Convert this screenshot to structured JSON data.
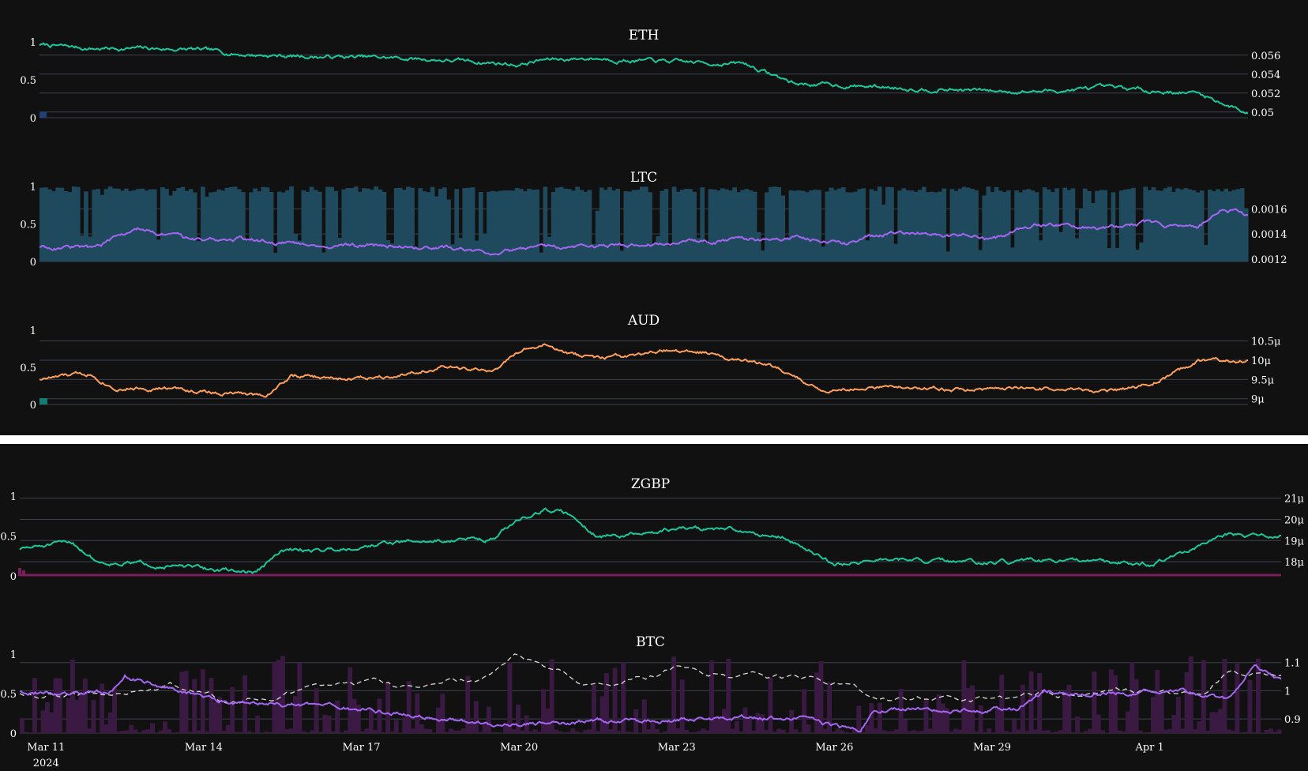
{
  "colors": {
    "background": "#111111",
    "separator": "#ffffff",
    "grid": "#3a4250",
    "text": "#ffffff",
    "green": "#1ec79a",
    "purple": "#a566f2",
    "orange": "#ff9f5c",
    "steel_bar": "#1f4a5e",
    "maroon": "#7a1f5c",
    "dark_purple_bar": "#3a1a42",
    "dashed_white": "#d9d9d9"
  },
  "x_axis": {
    "ticks": [
      "Mar 11",
      "Mar 14",
      "Mar 17",
      "Mar 20",
      "Mar 23",
      "Mar 26",
      "Mar 29",
      "Apr 1"
    ],
    "year_label": "2024",
    "range": [
      "2024-03-10T12:00",
      "2024-04-03T12:00"
    ]
  },
  "chart_data": [
    {
      "type": "line",
      "title": "ETH",
      "left_axis": {
        "range": [
          0,
          1
        ],
        "ticks": [
          "1",
          "0.5",
          "0"
        ]
      },
      "right_axis": {
        "range": [
          0.0494,
          0.0574
        ],
        "ticks": [
          "0.056",
          "0.054",
          "0.052",
          "0.05"
        ]
      },
      "series": [
        {
          "color_key": "green",
          "axis": "right",
          "style": "line",
          "x": [
            "Mar 10 12:00",
            "Mar 11 12:00",
            "Mar 12 12:00",
            "Mar 13 12:00",
            "Mar 14 12:00",
            "Mar 15 12:00",
            "Mar 16 12:00",
            "Mar 17 12:00",
            "Mar 18 12:00",
            "Mar 19 12:00",
            "Mar 20 00:00",
            "Mar 20 12:00",
            "Mar 21 12:00",
            "Mar 22 12:00",
            "Mar 23 12:00",
            "Mar 24 12:00",
            "Mar 25 12:00",
            "Mar 26 12:00",
            "Mar 27 12:00",
            "Mar 28 12:00",
            "Mar 29 12:00",
            "Mar 30 12:00",
            "Mar 31 12:00",
            "Apr 1 12:00",
            "Apr 2 12:00",
            "Apr 3 12:00"
          ],
          "values": [
            0.0571,
            0.0567,
            0.0567,
            0.0566,
            0.0561,
            0.0559,
            0.0558,
            0.0557,
            0.0555,
            0.0552,
            0.055,
            0.0555,
            0.0557,
            0.0554,
            0.0552,
            0.0551,
            0.053,
            0.0528,
            0.0526,
            0.0524,
            0.0522,
            0.0522,
            0.0525,
            0.0523,
            0.052,
            0.0499
          ]
        }
      ]
    },
    {
      "type": "line",
      "title": "LTC",
      "left_axis": {
        "range": [
          0,
          1
        ],
        "ticks": [
          "1",
          "0.5",
          "0"
        ]
      },
      "right_axis": {
        "range": [
          0.00118,
          0.00178
        ],
        "ticks": [
          "0.0016",
          "0.0014",
          "0.0012"
        ]
      },
      "series": [
        {
          "color_key": "steel_bar",
          "axis": "left",
          "style": "bars",
          "description_values": "volume 0-1, mostly near 1 with gaps"
        },
        {
          "color_key": "purple",
          "axis": "right",
          "style": "line",
          "x": [
            "Mar 10 12:00",
            "Mar 11 12:00",
            "Mar 12 06:00",
            "Mar 12 12:00",
            "Mar 13 12:00",
            "Mar 14 12:00",
            "Mar 15 12:00",
            "Mar 16 12:00",
            "Mar 17 12:00",
            "Mar 18 12:00",
            "Mar 19 12:00",
            "Mar 20 12:00",
            "Mar 21 12:00",
            "Mar 22 12:00",
            "Mar 23 12:00",
            "Mar 24 12:00",
            "Mar 25 12:00",
            "Mar 26 12:00",
            "Mar 27 12:00",
            "Mar 28 12:00",
            "Mar 29 12:00",
            "Mar 30 00:00",
            "Mar 30 12:00",
            "Mar 31 12:00",
            "Apr 1 12:00",
            "Apr 2 12:00",
            "Apr 3 00:00",
            "Apr 3 12:00"
          ],
          "values": [
            0.0013,
            0.00129,
            0.0014,
            0.00144,
            0.00135,
            0.00136,
            0.00133,
            0.00131,
            0.0013,
            0.00129,
            0.00126,
            0.00129,
            0.0013,
            0.00131,
            0.00133,
            0.00135,
            0.00137,
            0.00132,
            0.00142,
            0.00139,
            0.00137,
            0.00145,
            0.00148,
            0.00145,
            0.00149,
            0.00144,
            0.00162,
            0.00155
          ]
        }
      ]
    },
    {
      "type": "line",
      "title": "AUD",
      "left_axis": {
        "range": [
          0,
          1
        ],
        "ticks": [
          "1",
          "0.5",
          "0"
        ]
      },
      "right_axis": {
        "range": [
          8.85,
          10.78
        ],
        "ticks": [
          "10.5μ",
          "10μ",
          "9.5μ",
          "9μ"
        ]
      },
      "series": [
        {
          "color_key": "orange",
          "axis": "right",
          "style": "line",
          "x": [
            "Mar 10 12:00",
            "Mar 11 12:00",
            "Mar 12 00:00",
            "Mar 13 00:00",
            "Mar 14 00:00",
            "Mar 15 00:00",
            "Mar 15 12:00",
            "Mar 16 12:00",
            "Mar 17 12:00",
            "Mar 18 12:00",
            "Mar 19 12:00",
            "Mar 20 00:00",
            "Mar 20 12:00",
            "Mar 21 00:00",
            "Mar 21 12:00",
            "Mar 22 12:00",
            "Mar 23 00:00",
            "Mar 24 00:00",
            "Mar 25 00:00",
            "Mar 26 00:00",
            "Mar 27 00:00",
            "Mar 28 00:00",
            "Mar 29 00:00",
            "Mar 30 00:00",
            "Mar 31 00:00",
            "Apr 1 00:00",
            "Apr 1 12:00",
            "Apr 2 12:00",
            "Apr 3 12:00"
          ],
          "values": [
            9.52,
            9.65,
            9.3,
            9.27,
            9.15,
            9.1,
            9.6,
            9.5,
            9.62,
            9.82,
            9.7,
            10.2,
            10.4,
            10.15,
            10.05,
            10.1,
            10.25,
            10.15,
            9.85,
            9.25,
            9.25,
            9.3,
            9.22,
            9.28,
            9.24,
            9.2,
            9.35,
            9.95,
            10.0
          ]
        }
      ]
    },
    {
      "type": "line",
      "title": "ZGBP",
      "left_axis": {
        "range": [
          0,
          1
        ],
        "ticks": [
          "1",
          "0.5",
          "0"
        ]
      },
      "right_axis": {
        "range": [
          17.33,
          21.1
        ],
        "ticks": [
          "21μ",
          "20μ",
          "19μ",
          "18μ"
        ]
      },
      "series": [
        {
          "color_key": "maroon",
          "axis": "left",
          "style": "flat",
          "values": [
            0.01
          ]
        },
        {
          "color_key": "green",
          "axis": "right",
          "style": "line",
          "x": [
            "Mar 10 12:00",
            "Mar 11 12:00",
            "Mar 12 00:00",
            "Mar 13 00:00",
            "Mar 14 00:00",
            "Mar 15 00:00",
            "Mar 15 12:00",
            "Mar 16 12:00",
            "Mar 17 12:00",
            "Mar 18 12:00",
            "Mar 19 12:00",
            "Mar 20 00:00",
            "Mar 20 12:00",
            "Mar 21 00:00",
            "Mar 21 12:00",
            "Mar 22 12:00",
            "Mar 23 00:00",
            "Mar 24 00:00",
            "Mar 25 00:00",
            "Mar 26 00:00",
            "Mar 27 00:00",
            "Mar 28 00:00",
            "Mar 29 00:00",
            "Mar 30 00:00",
            "Mar 31 00:00",
            "Apr 1 00:00",
            "Apr 1 12:00",
            "Apr 2 12:00",
            "Apr 3 12:00"
          ],
          "values": [
            18.6,
            18.9,
            18.0,
            17.9,
            17.65,
            17.5,
            18.5,
            18.6,
            18.9,
            19.0,
            19.1,
            20.0,
            20.5,
            20.2,
            19.2,
            19.3,
            19.6,
            19.5,
            19.2,
            17.9,
            18.1,
            18.0,
            17.9,
            18.05,
            17.95,
            17.9,
            18.3,
            19.2,
            19.2
          ]
        }
      ]
    },
    {
      "type": "line",
      "title": "BTC",
      "left_axis": {
        "range": [
          0,
          1
        ],
        "ticks": [
          "1",
          "0.5",
          "0"
        ]
      },
      "right_axis": {
        "range": [
          0.85,
          1.13
        ],
        "ticks": [
          "1.1",
          "1",
          "0.9"
        ]
      },
      "series": [
        {
          "color_key": "dark_purple_bar",
          "axis": "left",
          "style": "bars",
          "description_values": "sparse volume bars 0-1"
        },
        {
          "color_key": "dashed_white",
          "axis": "left",
          "style": "dashed",
          "x": [
            "Mar 10 12:00",
            "Mar 11 12:00",
            "Mar 12 12:00",
            "Mar 13 12:00",
            "Mar 14 12:00",
            "Mar 15 12:00",
            "Mar 16 12:00",
            "Mar 17 12:00",
            "Mar 18 12:00",
            "Mar 19 12:00",
            "Mar 20 00:00",
            "Mar 20 12:00",
            "Mar 21 12:00",
            "Mar 22 12:00",
            "Mar 23 00:00",
            "Mar 24 00:00",
            "Mar 25 00:00",
            "Mar 26 00:00",
            "Mar 27 00:00",
            "Mar 28 00:00",
            "Mar 29 00:00",
            "Mar 30 00:00",
            "Mar 31 00:00",
            "Apr 1 00:00",
            "Apr 2 00:00",
            "Apr 2 12:00",
            "Apr 3 12:00"
          ],
          "values": [
            0.52,
            0.54,
            0.5,
            0.58,
            0.4,
            0.5,
            0.65,
            0.6,
            0.52,
            0.7,
            0.93,
            0.8,
            0.65,
            0.72,
            0.82,
            0.75,
            0.7,
            0.62,
            0.45,
            0.45,
            0.48,
            0.5,
            0.48,
            0.52,
            0.45,
            0.75,
            0.75
          ]
        },
        {
          "color_key": "purple",
          "axis": "right",
          "style": "line",
          "x": [
            "Mar 10 12:00",
            "Mar 11 12:00",
            "Mar 12 06:00",
            "Mar 12 12:00",
            "Mar 13 12:00",
            "Mar 14 12:00",
            "Mar 15 12:00",
            "Mar 16 12:00",
            "Mar 17 12:00",
            "Mar 18 12:00",
            "Mar 19 12:00",
            "Mar 20 12:00",
            "Mar 21 12:00",
            "Mar 22 12:00",
            "Mar 23 12:00",
            "Mar 24 12:00",
            "Mar 25 12:00",
            "Mar 26 12:00",
            "Mar 26 18:00",
            "Mar 27 12:00",
            "Mar 28 12:00",
            "Mar 29 12:00",
            "Mar 30 00:00",
            "Mar 30 12:00",
            "Mar 31 12:00",
            "Apr 1 12:00",
            "Apr 2 12:00",
            "Apr 3 00:00",
            "Apr 3 12:00"
          ],
          "values": [
            1.0,
            0.985,
            1.0,
            1.05,
            1.0,
            0.96,
            0.95,
            0.94,
            0.925,
            0.9,
            0.88,
            0.885,
            0.895,
            0.89,
            0.9,
            0.905,
            0.895,
            0.86,
            0.93,
            0.935,
            0.93,
            0.935,
            1.0,
            0.995,
            0.99,
            1.0,
            0.97,
            1.1,
            1.03
          ]
        }
      ]
    }
  ]
}
